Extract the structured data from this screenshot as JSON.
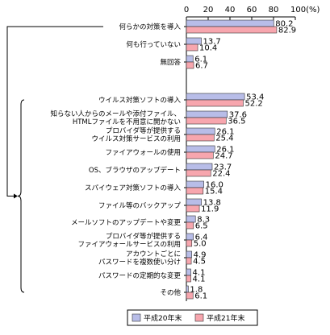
{
  "chart_data": {
    "type": "bar",
    "orientation": "horizontal",
    "xlim": [
      0,
      100
    ],
    "ticks": [
      "0",
      "20",
      "40",
      "60",
      "80",
      "100(%)"
    ],
    "categories": [
      [
        "何らかの対策を導入"
      ],
      [
        "何も行っていない"
      ],
      [
        "無回答"
      ],
      [
        "ウイルス対策ソフトの導入"
      ],
      [
        "知らない人からのメールや添付ファイル、",
        "HTMLファイルを不用意に開かない"
      ],
      [
        "プロバイダ等が提供する",
        "ウイルス対策サービスの利用"
      ],
      [
        "ファイアウォールの使用"
      ],
      [
        "OS、ブラウザのアップデート"
      ],
      [
        "スパイウェア対策ソフトの導入"
      ],
      [
        "ファイル等のバックアップ"
      ],
      [
        "メールソフトのアップデートや変更"
      ],
      [
        "プロバイダ等が提供する",
        "ファイアウォールサービスの利用"
      ],
      [
        "アカウントごとに",
        "パスワードを複数使い分け"
      ],
      [
        "パスワードの定期的な変更"
      ],
      [
        "その他"
      ]
    ],
    "series": [
      {
        "name": "平成20年末",
        "color": "#b8bde8",
        "values": [
          80.2,
          13.7,
          6.1,
          53.4,
          37.6,
          26.1,
          26.1,
          23.7,
          16.0,
          13.8,
          8.3,
          6.4,
          4.9,
          4.1,
          1.8
        ],
        "labels": [
          "80.2",
          "13.7",
          "6.1",
          "53.4",
          "37.6",
          "26.1",
          "26.1",
          "23.7",
          "16.0",
          "13.8",
          "8.3",
          "6.4",
          "4.9",
          "4.1",
          "1.8"
        ]
      },
      {
        "name": "平成21年末",
        "color": "#f7a6ae",
        "values": [
          82.9,
          10.4,
          6.7,
          52.2,
          36.5,
          25.4,
          24.7,
          22.4,
          15.4,
          11.9,
          6.5,
          5.0,
          4.5,
          4.1,
          6.1
        ],
        "labels": [
          "82.9",
          "10.4",
          "6.7",
          "52.2",
          "36.5",
          "25.4",
          "24.7",
          "22.4",
          "15.4",
          "11.9",
          "6.5",
          "5.0",
          "4.5",
          "4.1",
          "6.1"
        ]
      }
    ]
  }
}
